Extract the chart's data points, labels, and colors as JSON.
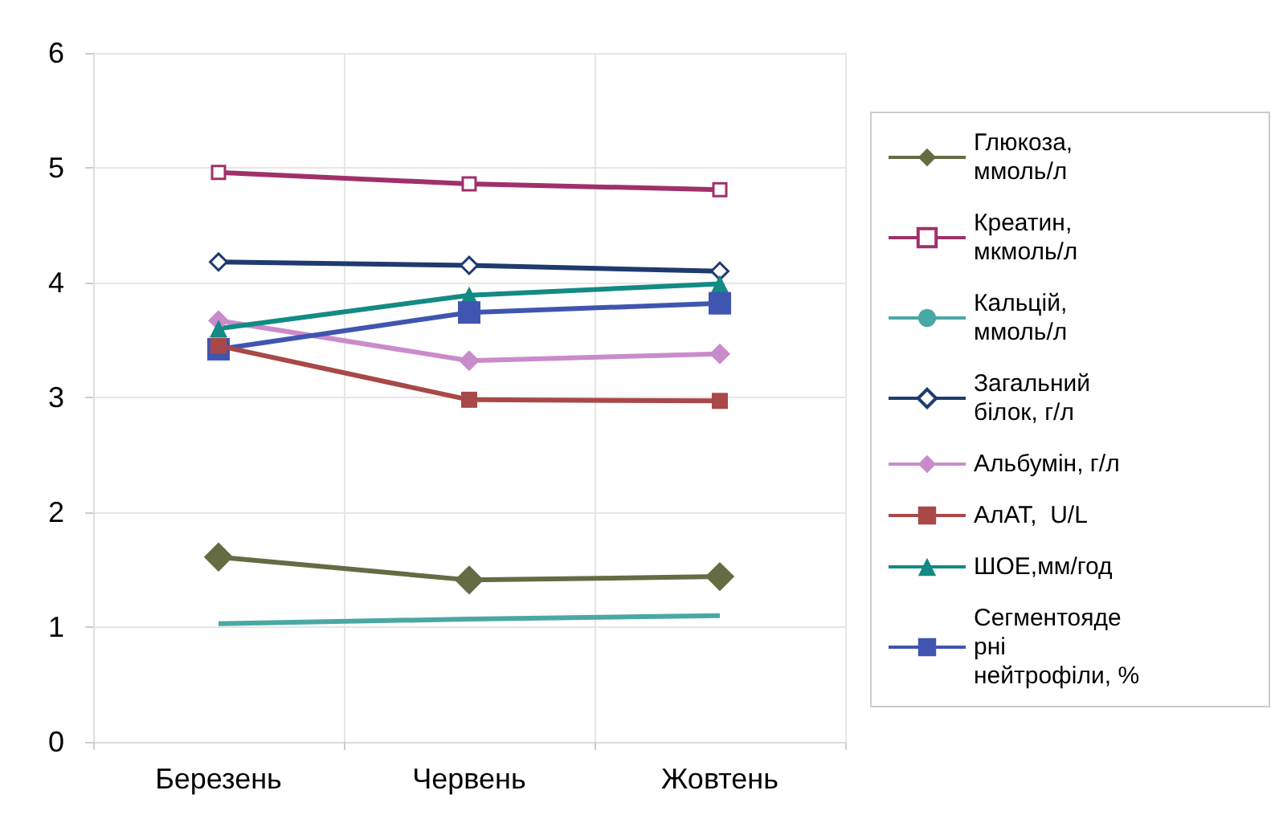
{
  "chart_data": {
    "type": "line",
    "categories": [
      "Березень",
      "Червень",
      "Жовтень"
    ],
    "ylim": [
      0,
      6
    ],
    "yticks": [
      0,
      1,
      2,
      3,
      4,
      5,
      6
    ],
    "grid": true,
    "legend": "right",
    "line_style": "solid",
    "series": [
      {
        "name": "Глюкоза, ммоль/л",
        "color": "#656b43",
        "marker": "diamond",
        "values": [
          1.61,
          1.41,
          1.44
        ]
      },
      {
        "name": "Креатин, мкмоль/л",
        "color": "#a0306a",
        "marker": "square",
        "values": [
          4.96,
          4.86,
          4.81
        ]
      },
      {
        "name": "Кальцій, ммоль/л",
        "color": "#4aa8a4",
        "marker": "none",
        "values": [
          1.03,
          1.07,
          1.1
        ]
      },
      {
        "name": "Загальний білок, г/л",
        "color": "#1f3a6e",
        "marker": "diamond",
        "values": [
          4.18,
          4.15,
          4.1
        ]
      },
      {
        "name": "Альбумін, г/л",
        "color": "#c98ccb",
        "marker": "diamond",
        "values": [
          3.67,
          3.32,
          3.38
        ]
      },
      {
        "name": "АлАТ,  U/L",
        "color": "#a84848",
        "marker": "square",
        "values": [
          3.45,
          2.98,
          2.97
        ]
      },
      {
        "name": "ШОЕ,мм/год",
        "color": "#138a84",
        "marker": "triangle",
        "values": [
          3.6,
          3.89,
          3.99
        ]
      },
      {
        "name": "Сегментоядерні нейтрофіли, %",
        "color": "#3f55b0",
        "marker": "square",
        "values": [
          3.42,
          3.74,
          3.82
        ]
      }
    ]
  }
}
